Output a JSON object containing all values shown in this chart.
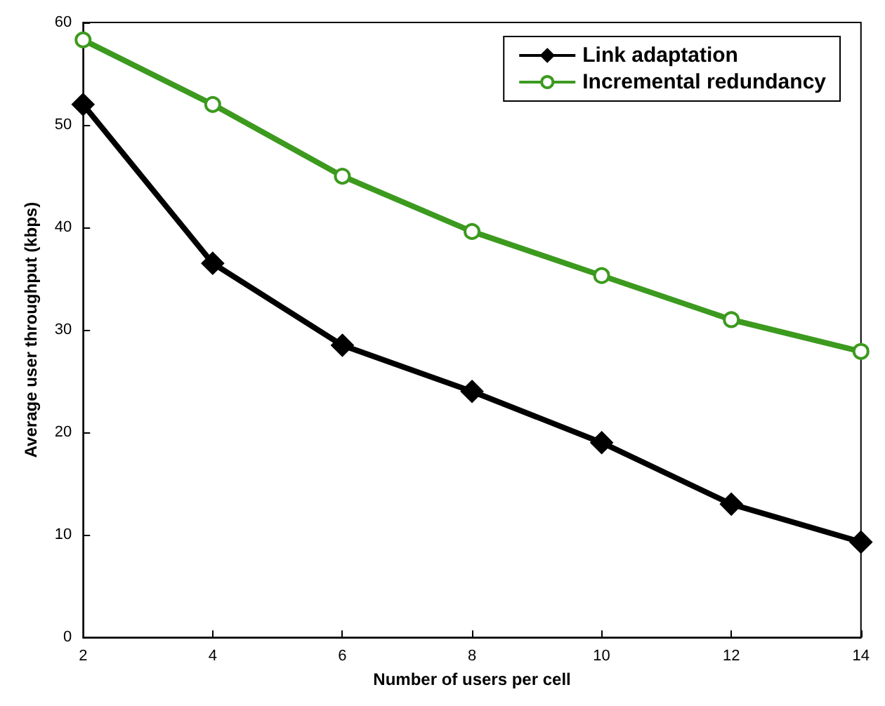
{
  "chart_data": {
    "type": "line",
    "xlabel": "Number of users per cell",
    "ylabel": "Average user throughput (kbps)",
    "x": [
      2,
      4,
      6,
      8,
      10,
      12,
      14
    ],
    "series": [
      {
        "name": "Link adaptation",
        "color": "#000000",
        "marker": "diamond",
        "values": [
          52,
          36.5,
          28.5,
          24,
          19,
          13,
          9.3
        ]
      },
      {
        "name": "Incremental redundancy",
        "color": "#3c9a1e",
        "marker": "circle",
        "values": [
          58.3,
          52,
          45,
          39.6,
          35.3,
          31,
          27.9
        ]
      }
    ],
    "xlim": [
      2,
      14
    ],
    "xticks": [
      2,
      4,
      6,
      8,
      10,
      12,
      14
    ],
    "ylim": [
      0,
      60
    ],
    "yticks": [
      0,
      10,
      20,
      30,
      40,
      50,
      60
    ],
    "grid": false,
    "legend": "top right",
    "line_style": "solid"
  }
}
